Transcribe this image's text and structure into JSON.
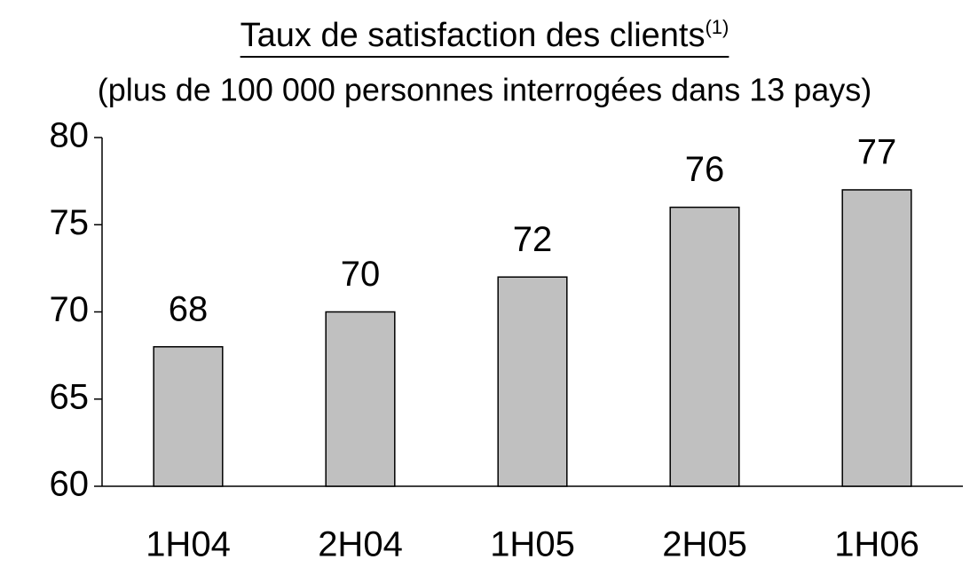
{
  "chart_data": {
    "type": "bar",
    "title": "Taux de satisfaction des clients",
    "title_note": "(1)",
    "subtitle": "(plus de 100 000 personnes interrogées dans 13 pays)",
    "categories": [
      "1H04",
      "2H04",
      "1H05",
      "2H05",
      "1H06"
    ],
    "values": [
      68,
      70,
      72,
      76,
      77
    ],
    "color": "#c0c0c0",
    "ylim": [
      60,
      80
    ],
    "yticks": [
      60,
      65,
      70,
      75,
      80
    ],
    "grid": false
  }
}
